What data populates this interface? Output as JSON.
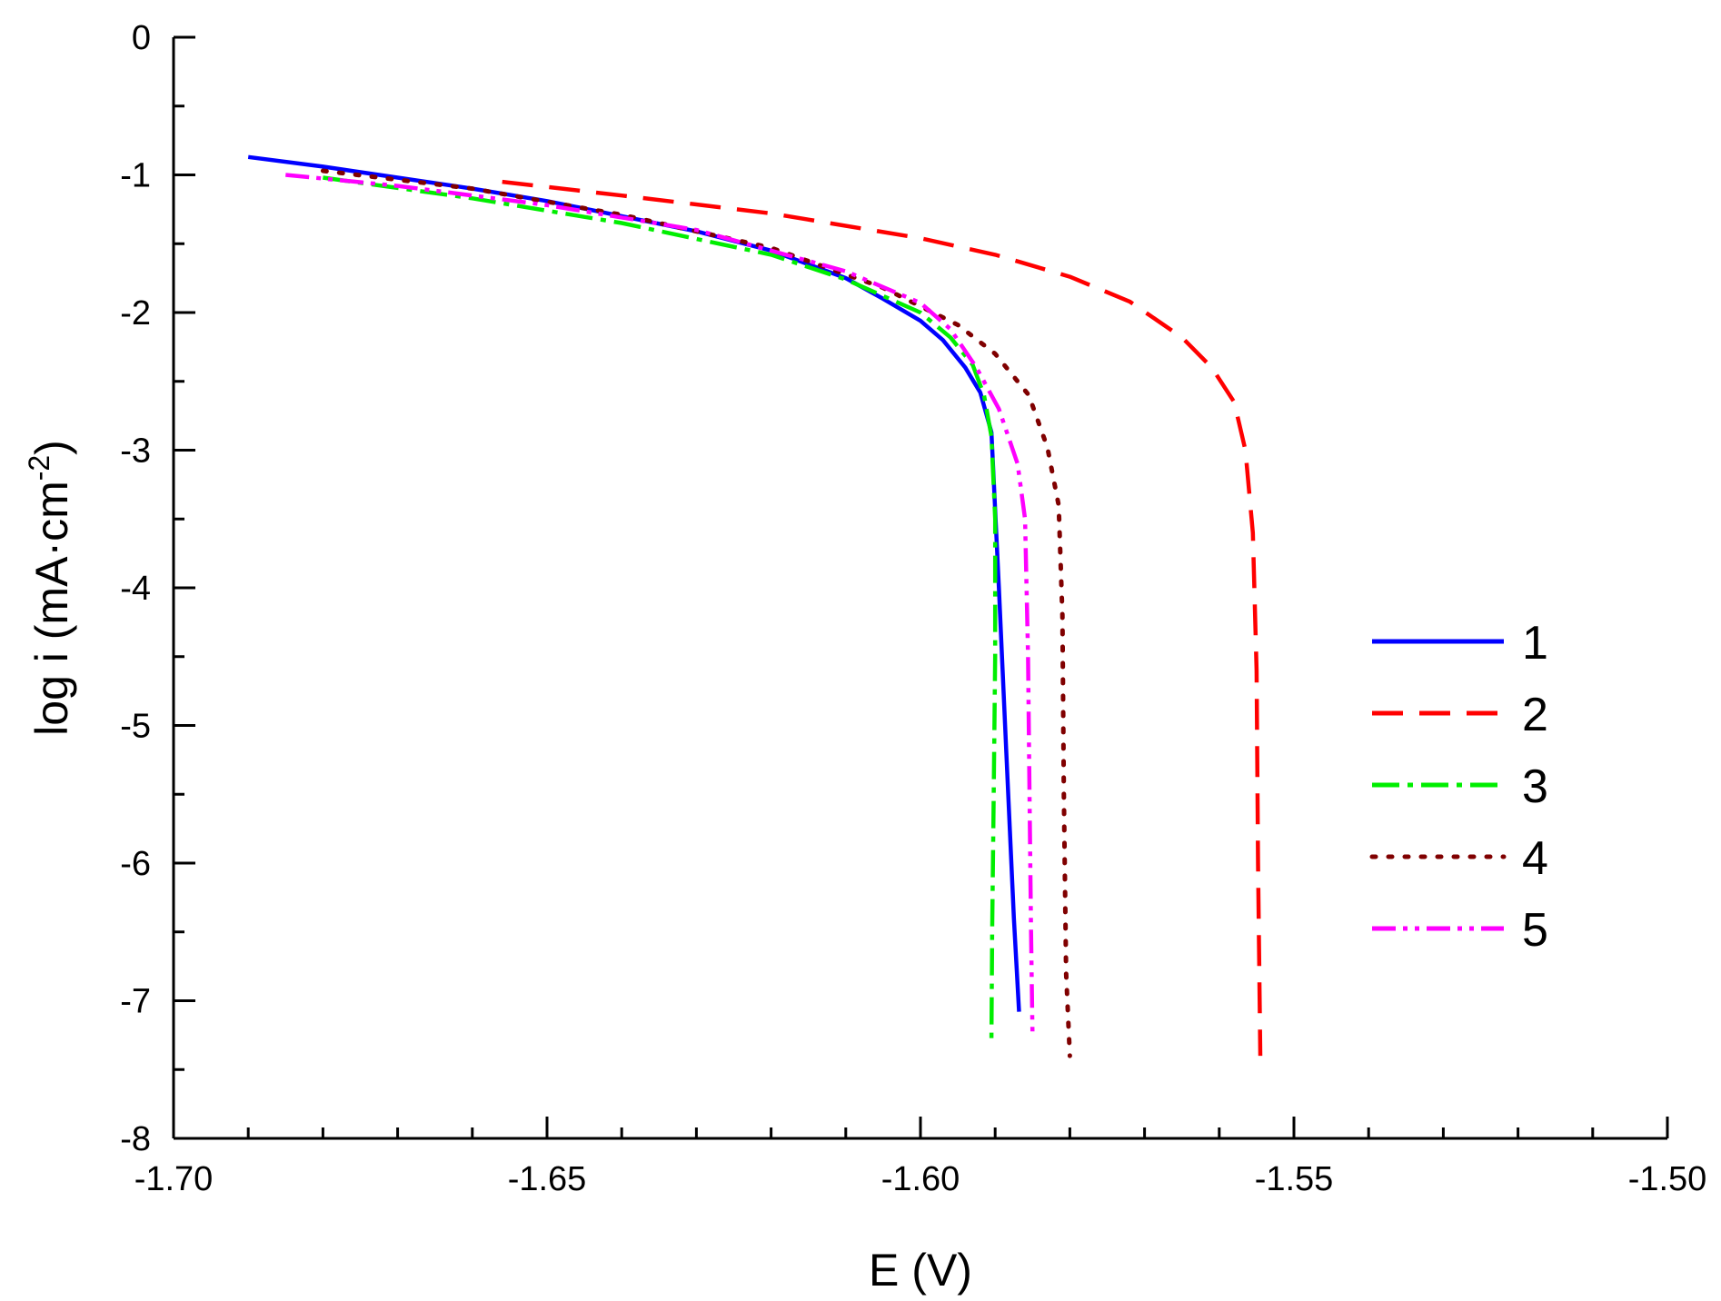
{
  "chart_data": {
    "type": "line",
    "xlabel": "E (V)",
    "ylabel": {
      "main": "log i (mA·cm",
      "sup": "-2",
      "close": ")"
    },
    "xlim": [
      -1.7,
      -1.5
    ],
    "ylim": [
      -8,
      0
    ],
    "x_ticks": [
      {
        "value": -1.7,
        "label": "-1.70"
      },
      {
        "value": -1.65,
        "label": "-1.65"
      },
      {
        "value": -1.6,
        "label": "-1.60"
      },
      {
        "value": -1.55,
        "label": "-1.55"
      },
      {
        "value": -1.5,
        "label": "-1.50"
      }
    ],
    "y_ticks": [
      {
        "value": 0,
        "label": "0"
      },
      {
        "value": -1,
        "label": "-1"
      },
      {
        "value": -2,
        "label": "-2"
      },
      {
        "value": -3,
        "label": "-3"
      },
      {
        "value": -4,
        "label": "-4"
      },
      {
        "value": -5,
        "label": "-5"
      },
      {
        "value": -6,
        "label": "-6"
      },
      {
        "value": -7,
        "label": "-7"
      },
      {
        "value": -8,
        "label": "-8"
      }
    ],
    "x_minor_step": 0.01,
    "y_minor_step": 0.5,
    "grid": false,
    "legend_position": "right",
    "series": [
      {
        "name": "1",
        "color": "#0000ff",
        "dash": "solid",
        "points": [
          [
            -1.69,
            -0.87
          ],
          [
            -1.68,
            -0.94
          ],
          [
            -1.67,
            -1.02
          ],
          [
            -1.66,
            -1.1
          ],
          [
            -1.65,
            -1.19
          ],
          [
            -1.64,
            -1.3
          ],
          [
            -1.63,
            -1.41
          ],
          [
            -1.62,
            -1.55
          ],
          [
            -1.61,
            -1.75
          ],
          [
            -1.605,
            -1.9
          ],
          [
            -1.6,
            -2.06
          ],
          [
            -1.597,
            -2.2
          ],
          [
            -1.594,
            -2.4
          ],
          [
            -1.592,
            -2.58
          ],
          [
            -1.5905,
            -2.87
          ],
          [
            -1.5895,
            -4.0
          ],
          [
            -1.5885,
            -5.2
          ],
          [
            -1.5875,
            -6.4
          ],
          [
            -1.5868,
            -7.08
          ]
        ]
      },
      {
        "name": "2",
        "color": "#ff0000",
        "dash": "long-dash",
        "points": [
          [
            -1.656,
            -1.05
          ],
          [
            -1.64,
            -1.15
          ],
          [
            -1.62,
            -1.28
          ],
          [
            -1.6,
            -1.46
          ],
          [
            -1.59,
            -1.58
          ],
          [
            -1.58,
            -1.74
          ],
          [
            -1.572,
            -1.92
          ],
          [
            -1.565,
            -2.18
          ],
          [
            -1.561,
            -2.4
          ],
          [
            -1.558,
            -2.65
          ],
          [
            -1.5565,
            -3.0
          ],
          [
            -1.5555,
            -3.6
          ],
          [
            -1.555,
            -4.6
          ],
          [
            -1.5548,
            -6.0
          ],
          [
            -1.5545,
            -7.4
          ]
        ]
      },
      {
        "name": "3",
        "color": "#00ee00",
        "dash": "dash-dot",
        "points": [
          [
            -1.68,
            -1.02
          ],
          [
            -1.66,
            -1.17
          ],
          [
            -1.64,
            -1.35
          ],
          [
            -1.62,
            -1.58
          ],
          [
            -1.61,
            -1.76
          ],
          [
            -1.6,
            -2.0
          ],
          [
            -1.596,
            -2.18
          ],
          [
            -1.593,
            -2.38
          ],
          [
            -1.5915,
            -2.6
          ],
          [
            -1.5905,
            -2.9
          ],
          [
            -1.59,
            -3.5
          ],
          [
            -1.59,
            -4.5
          ],
          [
            -1.5902,
            -5.5
          ],
          [
            -1.5904,
            -6.5
          ],
          [
            -1.5905,
            -7.28
          ]
        ]
      },
      {
        "name": "4",
        "color": "#800000",
        "dash": "dotted",
        "points": [
          [
            -1.68,
            -0.97
          ],
          [
            -1.66,
            -1.1
          ],
          [
            -1.64,
            -1.29
          ],
          [
            -1.62,
            -1.53
          ],
          [
            -1.605,
            -1.82
          ],
          [
            -1.595,
            -2.09
          ],
          [
            -1.59,
            -2.3
          ],
          [
            -1.5855,
            -2.6
          ],
          [
            -1.583,
            -2.98
          ],
          [
            -1.5815,
            -3.4
          ],
          [
            -1.581,
            -4.2
          ],
          [
            -1.5808,
            -5.5
          ],
          [
            -1.5805,
            -6.8
          ],
          [
            -1.58,
            -7.4
          ]
        ]
      },
      {
        "name": "5",
        "color": "#ff00ff",
        "dash": "dash-dot-dot",
        "points": [
          [
            -1.685,
            -1.0
          ],
          [
            -1.67,
            -1.08
          ],
          [
            -1.65,
            -1.22
          ],
          [
            -1.63,
            -1.4
          ],
          [
            -1.61,
            -1.7
          ],
          [
            -1.6,
            -1.93
          ],
          [
            -1.596,
            -2.12
          ],
          [
            -1.5925,
            -2.4
          ],
          [
            -1.5895,
            -2.7
          ],
          [
            -1.587,
            -3.1
          ],
          [
            -1.586,
            -3.5
          ],
          [
            -1.5856,
            -4.5
          ],
          [
            -1.5854,
            -5.5
          ],
          [
            -1.5852,
            -6.5
          ],
          [
            -1.585,
            -7.25
          ]
        ]
      }
    ]
  }
}
